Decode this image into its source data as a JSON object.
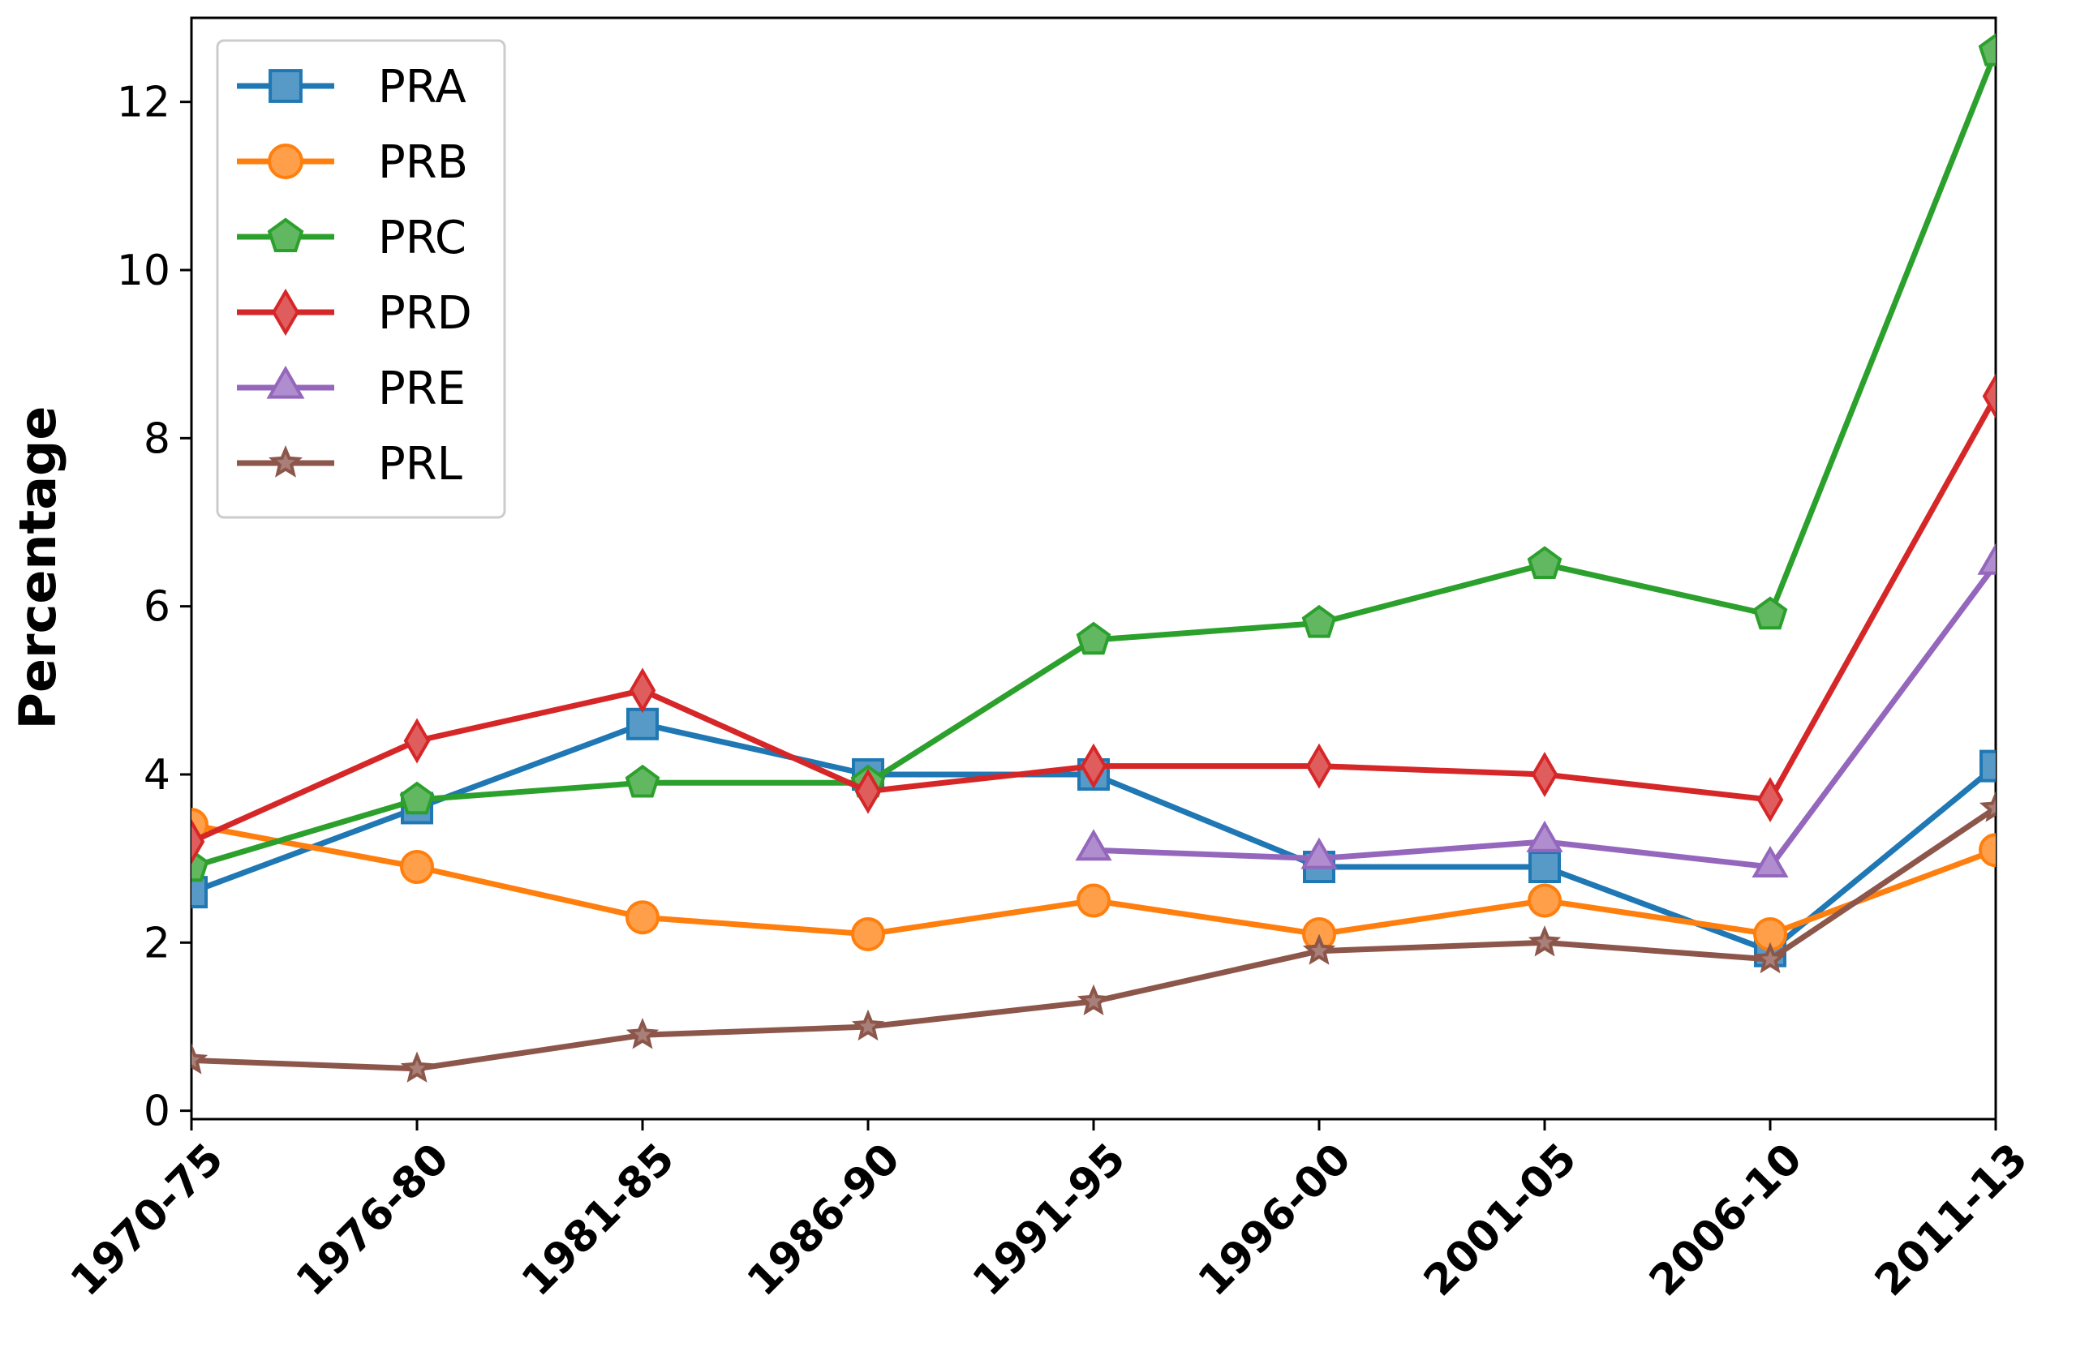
{
  "chart_data": {
    "type": "line",
    "title": "",
    "xlabel": "",
    "ylabel": "Percentage",
    "ylim": [
      -0.1,
      13
    ],
    "yticks": [
      0,
      2,
      4,
      6,
      8,
      10,
      12
    ],
    "grid": false,
    "legend_position": "top-left",
    "categories": [
      "1970-75",
      "1976-80",
      "1981-85",
      "1986-90",
      "1991-95",
      "1996-00",
      "2001-05",
      "2006-10",
      "2011-13"
    ],
    "series": [
      {
        "name": "PRA",
        "color": "#1f77b4",
        "marker": "square",
        "values": [
          2.6,
          3.6,
          4.6,
          4.0,
          4.0,
          2.9,
          2.9,
          1.9,
          4.1
        ]
      },
      {
        "name": "PRB",
        "color": "#ff7f0e",
        "marker": "circle",
        "values": [
          3.4,
          2.9,
          2.3,
          2.1,
          2.5,
          2.1,
          2.5,
          2.1,
          3.1
        ]
      },
      {
        "name": "PRC",
        "color": "#2ca02c",
        "marker": "pentagon",
        "values": [
          2.9,
          3.7,
          3.9,
          3.9,
          5.6,
          5.8,
          6.5,
          5.9,
          12.6
        ]
      },
      {
        "name": "PRD",
        "color": "#d62728",
        "marker": "diamond",
        "values": [
          3.2,
          4.4,
          5.0,
          3.8,
          4.1,
          4.1,
          4.0,
          3.7,
          8.5
        ]
      },
      {
        "name": "PRE",
        "color": "#9467bd",
        "marker": "triangle",
        "values": [
          null,
          null,
          null,
          null,
          3.1,
          3.0,
          3.2,
          2.9,
          6.5
        ]
      },
      {
        "name": "PRL",
        "color": "#8c564b",
        "marker": "star",
        "values": [
          0.6,
          0.5,
          0.9,
          1.0,
          1.3,
          1.9,
          2.0,
          1.8,
          3.6
        ]
      }
    ]
  }
}
